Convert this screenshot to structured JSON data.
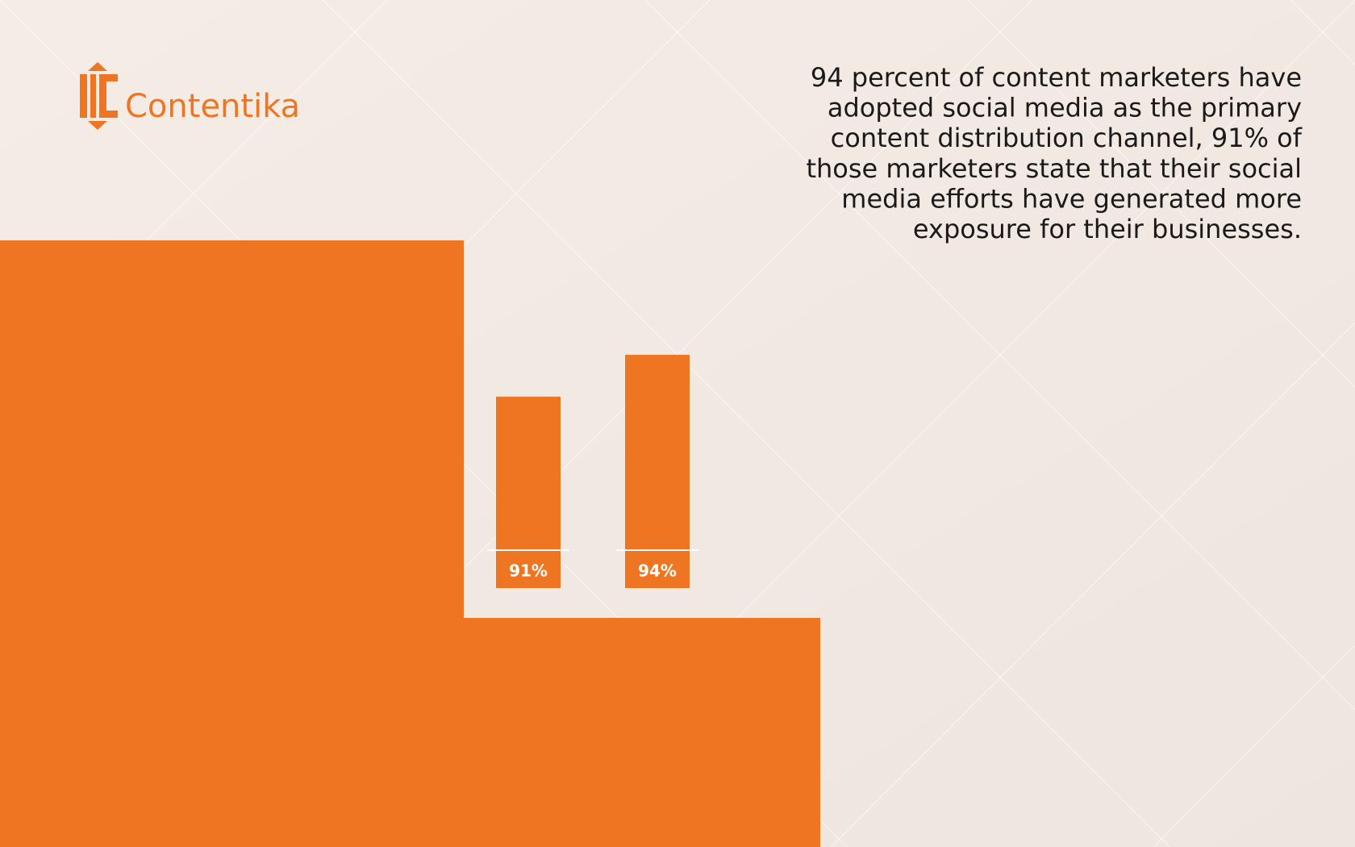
{
  "logo": "Contentika",
  "chart_data": {
    "type": "bar",
    "annotation": [
      "94 percent of content marketers have",
      "adopted social media as the primary",
      "content distribution channel, 91% of",
      "those marketers state that their social",
      "media efforts have generated more",
      "exposure for their businesses."
    ],
    "values": [
      91,
      94
    ],
    "value_labels": [
      "91%",
      "94%"
    ],
    "color": "#ee7623",
    "ylim": [
      80,
      100
    ]
  }
}
